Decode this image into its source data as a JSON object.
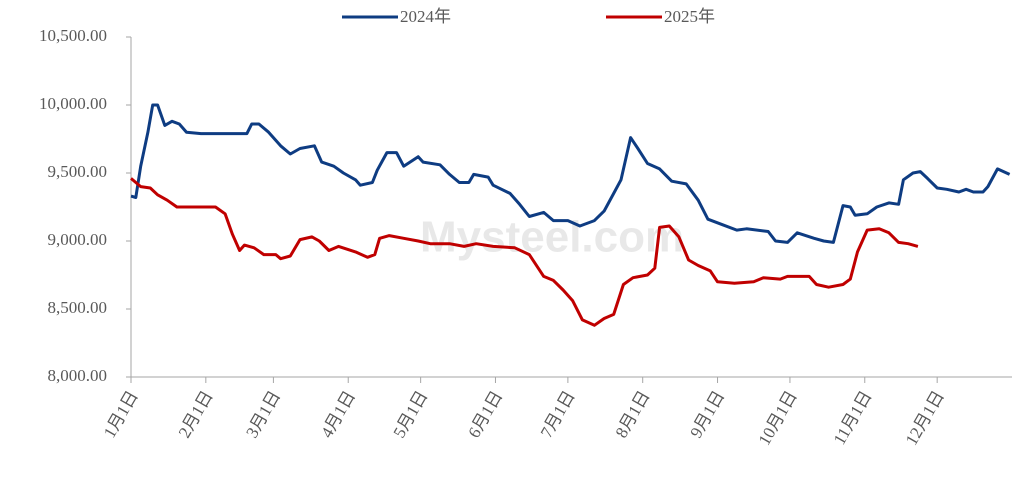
{
  "chart_data": {
    "type": "line",
    "watermark": "Mysteel.com",
    "xticks": [
      "1月1日",
      "2月1日",
      "3月1日",
      "4月1日",
      "5月1日",
      "6月1日",
      "7月1日",
      "8月1日",
      "9月1日",
      "10月1日",
      "11月1日",
      "12月1日"
    ],
    "ylim": [
      8000,
      10500
    ],
    "yticks": [
      {
        "value": 8000,
        "label": "8,000.00"
      },
      {
        "value": 8500,
        "label": "8,500.00"
      },
      {
        "value": 9000,
        "label": "9,000.00"
      },
      {
        "value": 9500,
        "label": "9,500.00"
      },
      {
        "value": 10000,
        "label": "10,000.00"
      },
      {
        "value": 10500,
        "label": "10,500.00"
      }
    ],
    "legend": "top",
    "series": [
      {
        "name": "2024年",
        "color": "#0e3c82",
        "x": [
          "1月1日",
          "1月3日",
          "1月5日",
          "1月8日",
          "1月10日",
          "1月12日",
          "1月15日",
          "1月18日",
          "1月21日",
          "1月24日",
          "1月30日",
          "2月11日",
          "2月18日",
          "2月20日",
          "2月23日",
          "2月27日",
          "3月4日",
          "3月8日",
          "3月12日",
          "3月18日",
          "3月21日",
          "3月26日",
          "3月30日",
          "4月4日",
          "4月6日",
          "4月11日",
          "4月13日",
          "4月17日",
          "4月21日",
          "4月24日",
          "4月30日",
          "5月2日",
          "5月9日",
          "5月13日",
          "5月17日",
          "5月21日",
          "5月23日",
          "5月29日",
          "5月31日",
          "6月7日",
          "6月11日",
          "6月15日",
          "6月21日",
          "6月25日",
          "7月1日",
          "7月6日",
          "7月12日",
          "7月16日",
          "7月20日",
          "7月23日",
          "7月27日",
          "7月30日",
          "8月3日",
          "8月8日",
          "8月13日",
          "8月19日",
          "8月24日",
          "8月28日",
          "9月3日",
          "9月9日",
          "9月13日",
          "9月22日",
          "9月25日",
          "9月30日",
          "10月4日",
          "10月11日",
          "10月15日",
          "10月19日",
          "10月23日",
          "10月26日",
          "10月28日",
          "11月2日",
          "11月6日",
          "11月11日",
          "11月15日",
          "11月17日",
          "11月21日",
          "11月24日",
          "11月27日",
          "12月1日",
          "12月5日",
          "12月10日",
          "12月13日",
          "12月16日",
          "12月20日",
          "12月22日",
          "12月26日",
          "12月31日"
        ],
        "values": [
          9330,
          9320,
          9550,
          9800,
          10000,
          10000,
          9850,
          9880,
          9860,
          9800,
          9790,
          9790,
          9790,
          9860,
          9860,
          9800,
          9700,
          9640,
          9680,
          9700,
          9580,
          9550,
          9500,
          9450,
          9410,
          9430,
          9520,
          9650,
          9650,
          9550,
          9620,
          9580,
          9560,
          9490,
          9430,
          9430,
          9490,
          9470,
          9410,
          9350,
          9270,
          9180,
          9210,
          9150,
          9150,
          9110,
          9150,
          9220,
          9350,
          9450,
          9760,
          9680,
          9570,
          9530,
          9440,
          9420,
          9300,
          9160,
          9120,
          9080,
          9090,
          9070,
          9000,
          8990,
          9060,
          9020,
          9000,
          8990,
          9260,
          9250,
          9190,
          9200,
          9250,
          9280,
          9270,
          9450,
          9500,
          9510,
          9460,
          9390,
          9380,
          9360,
          9380,
          9360,
          9360,
          9400,
          9530,
          9490
        ]
      },
      {
        "name": "2025年",
        "color": "#c00000",
        "x": [
          "1月1日",
          "1月5日",
          "1月9日",
          "1月12日",
          "1月16日",
          "1月20日",
          "1月30日",
          "2月5日",
          "2月9日",
          "2月12日",
          "2月15日",
          "2月17日",
          "2月21日",
          "2月25日",
          "3月2日",
          "3月4日",
          "3月8日",
          "3月12日",
          "3月17日",
          "3月20日",
          "3月24日",
          "3月28日",
          "4月4日",
          "4月9日",
          "4月12日",
          "4月14日",
          "4月18日",
          "4月24日",
          "4月30日",
          "5月5日",
          "5月13日",
          "5月19日",
          "5月24日",
          "5月31日",
          "6月9日",
          "6月15日",
          "6月21日",
          "6月25日",
          "6月29日",
          "7月3日",
          "7月7日",
          "7月12日",
          "7月16日",
          "7月20日",
          "7月24日",
          "7月28日",
          "8月3日",
          "8月6日",
          "8月8日",
          "8月12日",
          "8月16日",
          "8月20日",
          "8月24日",
          "8月29日",
          "9月1日",
          "9月8日",
          "9月16日",
          "9月20日",
          "9月27日",
          "9月30日",
          "10月9日",
          "10月12日",
          "10月17日",
          "10月23日",
          "10月26日",
          "10月29日",
          "11月2日",
          "11月7日",
          "11月11日",
          "11月15日",
          "11月19日",
          "11月23日"
        ],
        "values": [
          9460,
          9400,
          9390,
          9340,
          9300,
          9250,
          9250,
          9250,
          9200,
          9050,
          8930,
          8970,
          8950,
          8900,
          8900,
          8870,
          8890,
          9010,
          9030,
          9000,
          8930,
          8960,
          8920,
          8880,
          8900,
          9020,
          9040,
          9020,
          9000,
          8980,
          8980,
          8960,
          8980,
          8960,
          8950,
          8900,
          8740,
          8710,
          8640,
          8560,
          8420,
          8380,
          8430,
          8460,
          8680,
          8730,
          8750,
          8800,
          9100,
          9110,
          9030,
          8860,
          8820,
          8780,
          8700,
          8690,
          8700,
          8730,
          8720,
          8740,
          8740,
          8680,
          8660,
          8680,
          8720,
          8920,
          9080,
          9090,
          9060,
          8990,
          8980,
          8960
        ]
      }
    ]
  }
}
